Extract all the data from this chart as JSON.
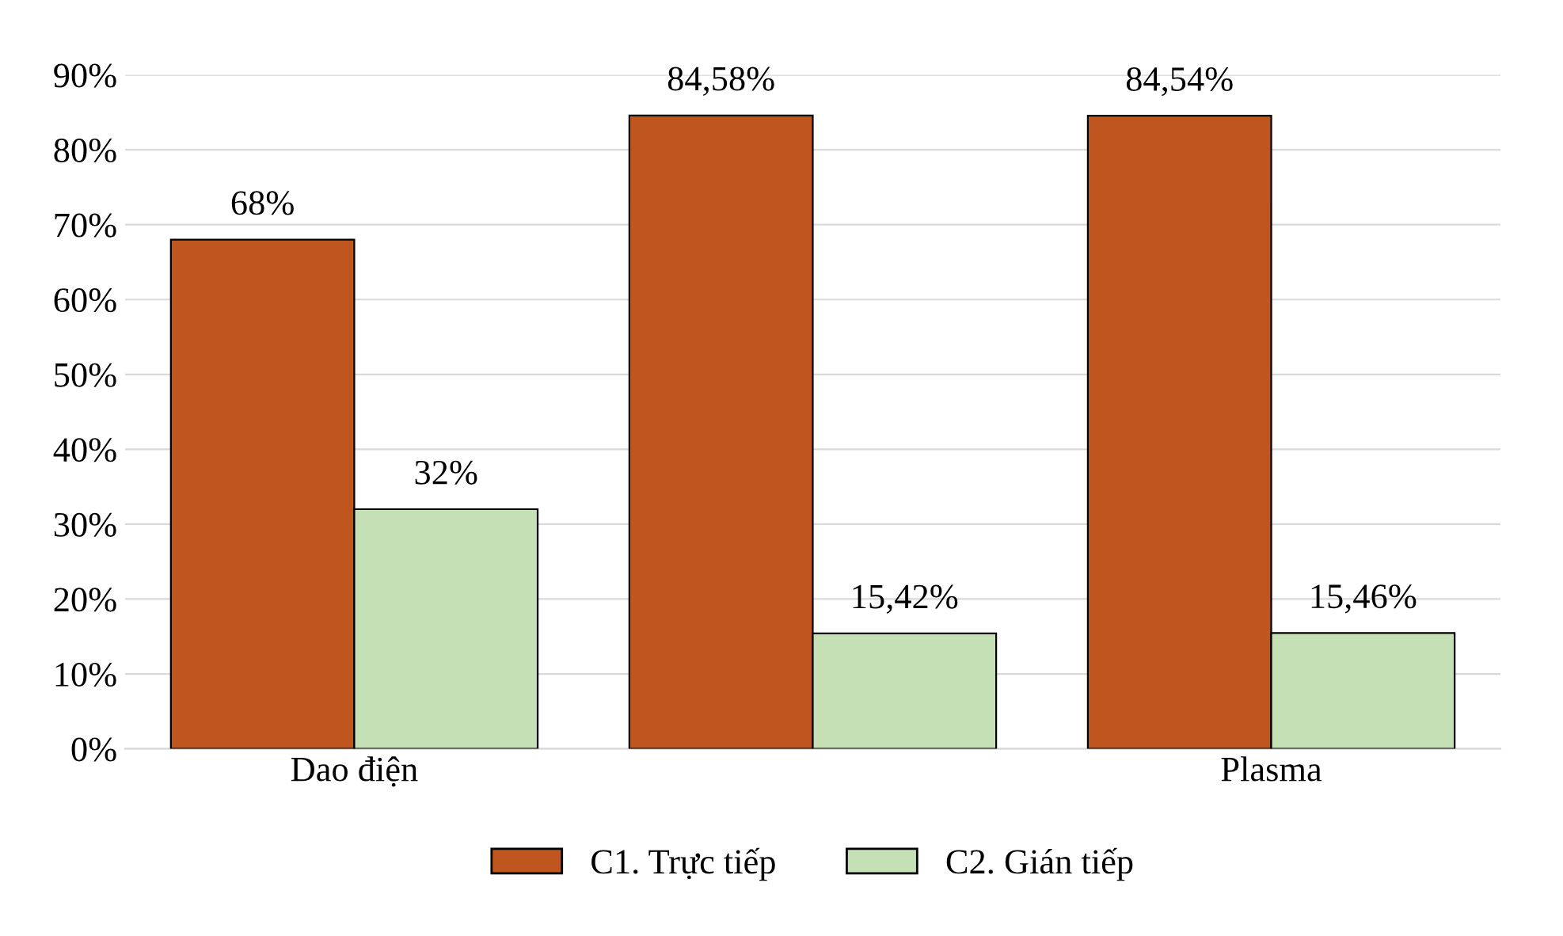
{
  "chart_data": {
    "type": "bar",
    "categories": [
      "Dao điện",
      null,
      "Plasma"
    ],
    "series": [
      {
        "name": "C1. Trực tiếp",
        "color": "#c0561f",
        "values": [
          68,
          84.58,
          84.54
        ],
        "value_labels": [
          "68%",
          "84,58%",
          "84,54%"
        ]
      },
      {
        "name": "C2. Gián tiếp",
        "color": "#c5e0b4",
        "values": [
          32,
          15.42,
          15.46
        ],
        "value_labels": [
          "32%",
          "15,42%",
          "15,46%"
        ]
      }
    ],
    "ylim": [
      0,
      90
    ],
    "yticks": [
      {
        "value": 0,
        "label": "0%"
      },
      {
        "value": 10,
        "label": "10%"
      },
      {
        "value": 20,
        "label": "20%"
      },
      {
        "value": 30,
        "label": "30%"
      },
      {
        "value": 40,
        "label": "40%"
      },
      {
        "value": 50,
        "label": "50%"
      },
      {
        "value": 60,
        "label": "60%"
      },
      {
        "value": 70,
        "label": "70%"
      },
      {
        "value": 80,
        "label": "80%"
      },
      {
        "value": 90,
        "label": "90%"
      }
    ],
    "grid": "y",
    "legend": "bottom"
  }
}
